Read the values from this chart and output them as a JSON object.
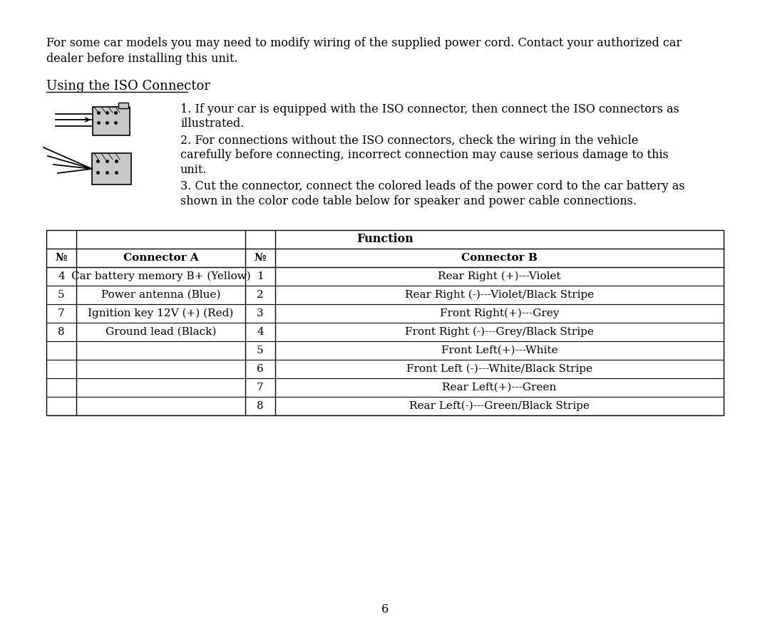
{
  "bg_color": "#ffffff",
  "page_number": "6",
  "intro_line1": "For some car models you may need to modify wiring of the supplied power cord. Contact your authorized car",
  "intro_line2": "dealer before installing this unit.",
  "section_title": "Using the ISO Connector",
  "point1_line1": "1. If your car is equipped with the ISO connector, then connect the ISO connectors as",
  "point1_line2": "illustrated.",
  "point2_line1": "2. For connections without the ISO connectors, check the wiring in the vehicle",
  "point2_line2": "carefully before connecting, incorrect connection may cause serious damage to this",
  "point2_line3": "unit.",
  "point3_line1": "3. Cut the connector, connect the colored leads of the power cord to the car battery as",
  "point3_line2": "shown in the color code table below for speaker and power cable connections.",
  "table_header": "Function",
  "col_headers": [
    "№",
    "Connector A",
    "№",
    "Connector B"
  ],
  "connector_a_rows": [
    [
      "4",
      "Car battery memory B+ (Yellow)"
    ],
    [
      "5",
      "Power antenna (Blue)"
    ],
    [
      "7",
      "Ignition key 12V (+) (Red)"
    ],
    [
      "8",
      "Ground lead (Black)"
    ],
    [
      "",
      ""
    ],
    [
      "",
      ""
    ],
    [
      "",
      ""
    ],
    [
      "",
      ""
    ]
  ],
  "connector_b_rows": [
    [
      "1",
      "Rear Right (+)---Violet"
    ],
    [
      "2",
      "Rear Right (-)---Violet/Black Stripe"
    ],
    [
      "3",
      "Front Right(+)---Grey"
    ],
    [
      "4",
      "Front Right (-)---Grey/Black Stripe"
    ],
    [
      "5",
      "Front Left(+)---White"
    ],
    [
      "6",
      "Front Left (-)---White/Black Stripe"
    ],
    [
      "7",
      "Rear Left(+)---Green"
    ],
    [
      "8",
      "Rear Left(-)---Green/Black Stripe"
    ]
  ],
  "font_family": "DejaVu Serif",
  "body_fontsize": 11.5,
  "title_fontsize": 13,
  "table_fontsize": 11
}
